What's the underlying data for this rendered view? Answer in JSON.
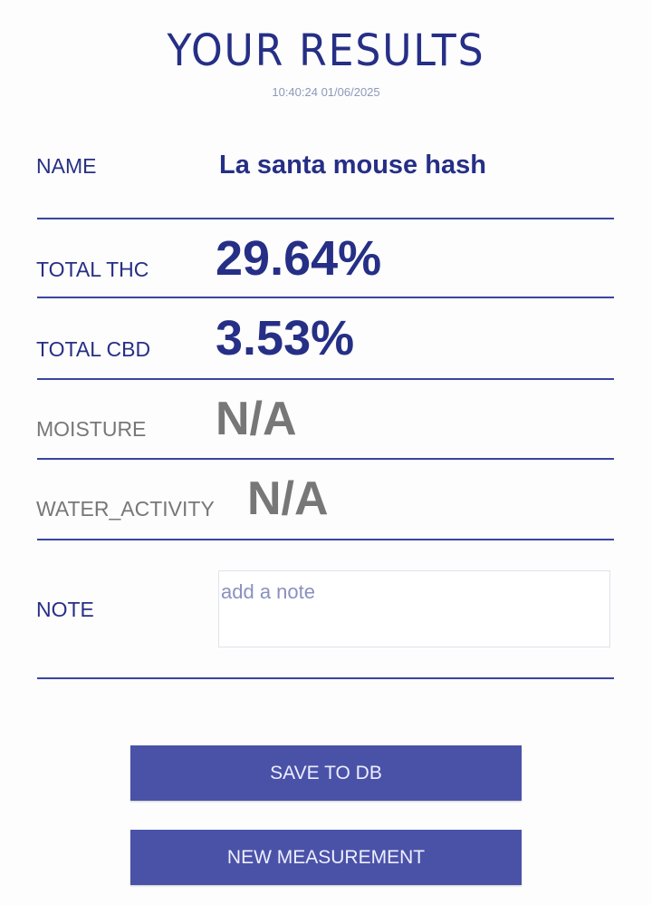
{
  "header": {
    "title": "YOUR RESULTS",
    "timestamp": "10:40:24 01/06/2025"
  },
  "rows": {
    "name": {
      "label": "NAME",
      "value": "La santa mouse hash"
    },
    "thc": {
      "label": "TOTAL THC",
      "value": "29.64%"
    },
    "cbd": {
      "label": "TOTAL CBD",
      "value": "3.53%"
    },
    "moisture": {
      "label": "MOISTURE",
      "value": "N/A"
    },
    "water": {
      "label": "WATER_ACTIVITY",
      "value": "N/A"
    },
    "note": {
      "label": "NOTE",
      "placeholder": "add a note",
      "value": ""
    }
  },
  "buttons": {
    "save": "SAVE TO DB",
    "new": "NEW MEASUREMENT"
  },
  "colors": {
    "primary": "#262f86",
    "button": "#4a52a8",
    "muted": "#777777"
  }
}
